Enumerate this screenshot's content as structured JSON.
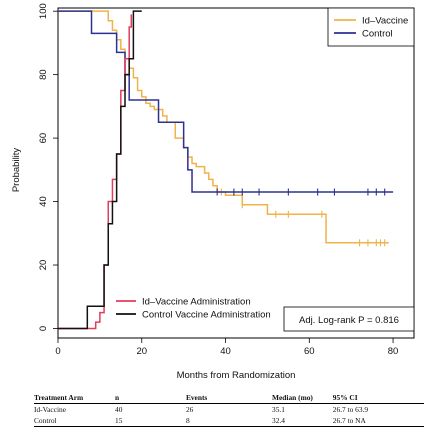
{
  "chart_data": {
    "type": "line",
    "xlabel": "Months from Randomization",
    "ylabel": "Probability",
    "xlim": [
      0,
      85
    ],
    "ylim": [
      -3,
      101
    ],
    "xticks": [
      "0",
      "20",
      "40",
      "60",
      "80"
    ],
    "xtick_values": [
      0,
      20,
      40,
      60,
      80
    ],
    "yticks": [
      "0",
      "20",
      "40",
      "60",
      "80",
      "100"
    ],
    "ytick_values": [
      0,
      20,
      40,
      60,
      80,
      100
    ],
    "grid": false,
    "legend_placement": "top-right",
    "series": [
      {
        "name": "Id–Vaccine",
        "color": "#f0b24a",
        "step": true,
        "points": [
          [
            0,
            100
          ],
          [
            8,
            100
          ],
          [
            12,
            97
          ],
          [
            13,
            94
          ],
          [
            14,
            91
          ],
          [
            15,
            88
          ],
          [
            16,
            85
          ],
          [
            17,
            82
          ],
          [
            18,
            79
          ],
          [
            19,
            75
          ],
          [
            20,
            73
          ],
          [
            21,
            71
          ],
          [
            22,
            70
          ],
          [
            23,
            69
          ],
          [
            25,
            67
          ],
          [
            26,
            65
          ],
          [
            28,
            60
          ],
          [
            30,
            57
          ],
          [
            31,
            54
          ],
          [
            32,
            52
          ],
          [
            33,
            51
          ],
          [
            35,
            49
          ],
          [
            36,
            47
          ],
          [
            37,
            45
          ],
          [
            38,
            43
          ],
          [
            40,
            42
          ],
          [
            44,
            39
          ],
          [
            48,
            39
          ],
          [
            50,
            36
          ],
          [
            52,
            36
          ],
          [
            55,
            36
          ],
          [
            63,
            36
          ],
          [
            64,
            27
          ],
          [
            70,
            27
          ],
          [
            79,
            27
          ]
        ],
        "censored": [
          [
            39,
            43
          ],
          [
            44,
            39
          ],
          [
            52,
            36
          ],
          [
            55,
            36
          ],
          [
            63,
            36
          ],
          [
            64,
            33
          ],
          [
            72,
            27
          ],
          [
            74,
            27
          ],
          [
            76,
            27
          ],
          [
            77,
            27
          ],
          [
            78,
            27
          ]
        ]
      },
      {
        "name": "Control",
        "color": "#2e3192",
        "step": true,
        "points": [
          [
            0,
            100
          ],
          [
            8,
            93
          ],
          [
            13,
            93
          ],
          [
            14,
            87
          ],
          [
            16,
            80
          ],
          [
            17,
            72
          ],
          [
            23,
            72
          ],
          [
            24,
            65
          ],
          [
            26,
            65
          ],
          [
            30,
            57
          ],
          [
            31,
            50
          ],
          [
            32,
            43
          ],
          [
            40,
            43
          ],
          [
            80,
            43
          ]
        ],
        "censored": [
          [
            38,
            43
          ],
          [
            42,
            43
          ],
          [
            44,
            43
          ],
          [
            48,
            43
          ],
          [
            55,
            43
          ],
          [
            62,
            43
          ],
          [
            66,
            43
          ],
          [
            74,
            43
          ],
          [
            76,
            43
          ],
          [
            78,
            43
          ]
        ]
      },
      {
        "name": "Id–Vaccine Administration",
        "color": "#e23d5c",
        "step": true,
        "points": [
          [
            0,
            0
          ],
          [
            8,
            0
          ],
          [
            9,
            2
          ],
          [
            10,
            5
          ],
          [
            11,
            20
          ],
          [
            12,
            40
          ],
          [
            13,
            47
          ],
          [
            14,
            55
          ],
          [
            15,
            75
          ],
          [
            16,
            85
          ],
          [
            17,
            95
          ],
          [
            17.5,
            99
          ]
        ]
      },
      {
        "name": "Control Vaccine Administration",
        "color": "#111111",
        "step": true,
        "points": [
          [
            0,
            0
          ],
          [
            7,
            0
          ],
          [
            7,
            7
          ],
          [
            10,
            7
          ],
          [
            11,
            20
          ],
          [
            12,
            33
          ],
          [
            13,
            40
          ],
          [
            14,
            55
          ],
          [
            15,
            70
          ],
          [
            16,
            80
          ],
          [
            17,
            85
          ],
          [
            18,
            100
          ],
          [
            20,
            100
          ]
        ]
      }
    ],
    "annotations": [
      {
        "text": "Adj. Log-rank P = 0.816",
        "placement": "bottom-right"
      }
    ]
  },
  "table": {
    "headers": [
      "Treatment Arm",
      "n",
      "Events",
      "Median (mo)",
      "95% CI"
    ],
    "rows": [
      [
        "Id-Vaccine",
        "40",
        "26",
        "35.1",
        "26.7 to 63.9"
      ],
      [
        "Control",
        "15",
        "8",
        "32.4",
        "26.7 to NA"
      ]
    ]
  }
}
